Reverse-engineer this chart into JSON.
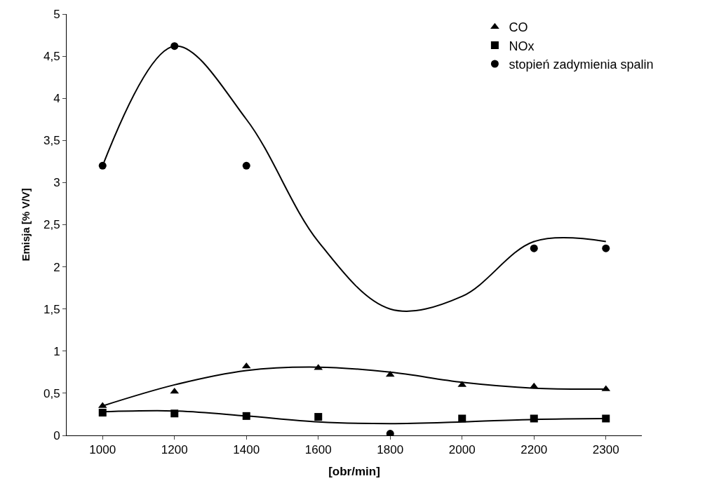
{
  "chart_data": {
    "type": "scatter",
    "xlabel": "[obr/min]",
    "ylabel": "Emisja [% V/V]",
    "categories": [
      "1000",
      "1200",
      "1400",
      "1600",
      "1800",
      "2000",
      "2200",
      "2300"
    ],
    "series": [
      {
        "name": "CO",
        "color": "#000000",
        "marker": "triangle",
        "values": [
          0.35,
          0.52,
          0.82,
          0.8,
          0.72,
          0.6,
          0.58,
          0.55
        ]
      },
      {
        "name": "NOx",
        "color": "#000000",
        "marker": "square",
        "values": [
          0.27,
          0.26,
          0.23,
          0.22,
          null,
          0.2,
          0.2,
          0.2
        ]
      },
      {
        "name": "stopień zadymienia spalin",
        "color": "#000000",
        "marker": "circle",
        "values": [
          3.2,
          4.62,
          3.2,
          null,
          0.02,
          null,
          2.22,
          2.22
        ]
      },
      {
        "type": "line",
        "color": "#000000",
        "marker": "none",
        "line_style": "solid",
        "values": [
          0.35,
          0.6,
          0.77,
          0.81,
          0.75,
          0.63,
          0.56,
          0.55
        ]
      },
      {
        "type": "line",
        "color": "#000000",
        "marker": "none",
        "line_style": "solid",
        "values": [
          0.28,
          0.29,
          0.23,
          0.16,
          0.14,
          0.16,
          0.19,
          0.2
        ]
      },
      {
        "type": "line",
        "color": "#000000",
        "marker": "none",
        "line_style": "solid",
        "values": [
          3.2,
          4.62,
          3.75,
          2.3,
          1.5,
          1.65,
          2.3,
          2.3
        ]
      }
    ],
    "ylim": [
      0,
      5
    ],
    "yticks": [
      0,
      {
        "value": 0.5,
        "label": "0,5"
      },
      1,
      {
        "value": 1.5,
        "label": "1,5"
      },
      2,
      {
        "value": 2.5,
        "label": "2,5"
      },
      3,
      {
        "value": 3.5,
        "label": "3,5"
      },
      4,
      {
        "value": 4.5,
        "label": "4,5"
      },
      5
    ],
    "grid": false,
    "legend": "top right"
  }
}
